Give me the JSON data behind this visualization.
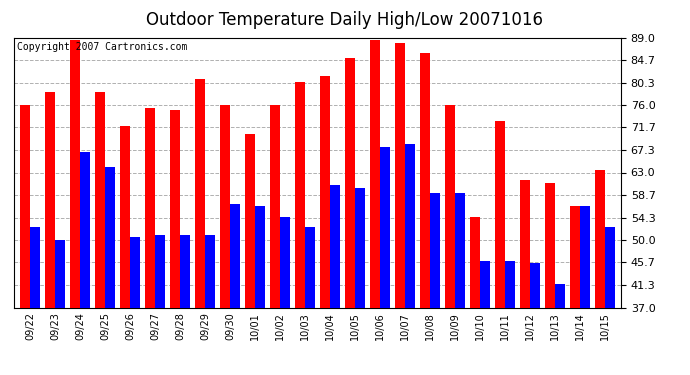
{
  "title": "Outdoor Temperature Daily High/Low 20071016",
  "copyright": "Copyright 2007 Cartronics.com",
  "dates": [
    "09/22",
    "09/23",
    "09/24",
    "09/25",
    "09/26",
    "09/27",
    "09/28",
    "09/29",
    "09/30",
    "10/01",
    "10/02",
    "10/03",
    "10/04",
    "10/05",
    "10/06",
    "10/07",
    "10/08",
    "10/09",
    "10/10",
    "10/11",
    "10/12",
    "10/13",
    "10/14",
    "10/15"
  ],
  "highs": [
    76.0,
    78.5,
    88.5,
    78.5,
    72.0,
    75.5,
    75.0,
    81.0,
    76.0,
    70.5,
    76.0,
    80.5,
    81.5,
    85.0,
    88.5,
    88.0,
    86.0,
    76.0,
    54.5,
    73.0,
    61.5,
    61.0,
    56.5,
    63.5
  ],
  "lows": [
    52.5,
    50.0,
    67.0,
    64.0,
    50.5,
    51.0,
    51.0,
    51.0,
    57.0,
    56.5,
    54.5,
    52.5,
    60.5,
    60.0,
    68.0,
    68.5,
    59.0,
    59.0,
    46.0,
    46.0,
    45.5,
    41.5,
    56.5,
    52.5
  ],
  "ylim_min": 37.0,
  "ylim_max": 89.0,
  "yticks": [
    37.0,
    41.3,
    45.7,
    50.0,
    54.3,
    58.7,
    63.0,
    67.3,
    71.7,
    76.0,
    80.3,
    84.7,
    89.0
  ],
  "high_color": "#ff0000",
  "low_color": "#0000ff",
  "bg_color": "#ffffff",
  "plot_bg_color": "#ffffff",
  "grid_color": "#b0b0b0",
  "title_fontsize": 12,
  "copyright_fontsize": 7,
  "bar_width": 0.4,
  "fig_width": 6.9,
  "fig_height": 3.75,
  "dpi": 100
}
